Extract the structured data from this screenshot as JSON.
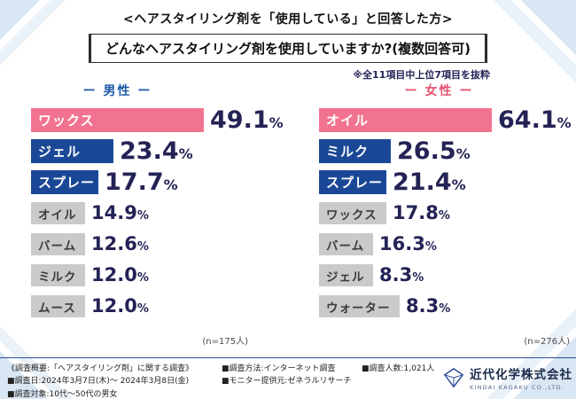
{
  "header": {
    "title": "<ヘアスタイリング剤を「使用している」と回答した方>",
    "question": "どんなヘアスタイリング剤を使用していますか?(複数回答可)",
    "note": "※全11項目中上位7項目を抜粋"
  },
  "colors": {
    "pink": "#f2738f",
    "blue": "#1b4896",
    "gray": "#c9cacb",
    "male_label": "#1c59a8",
    "female_label": "#e8506f",
    "percent_text": "#232356"
  },
  "chart_data": {
    "type": "bar",
    "orientation": "horizontal",
    "title": "どんなヘアスタイリング剤を使用していますか?(複数回答可)",
    "unit": "%",
    "value_labels": true,
    "groups": [
      {
        "name_label": "ー 男性 ー",
        "n_label": "(n=175人)",
        "items": [
          {
            "label": "ワックス",
            "value": 49.1,
            "color": "pink"
          },
          {
            "label": "ジェル",
            "value": 23.4,
            "color": "blue"
          },
          {
            "label": "スプレー",
            "value": 17.7,
            "color": "blue"
          },
          {
            "label": "オイル",
            "value": 14.9,
            "color": "gray"
          },
          {
            "label": "バーム",
            "value": 12.6,
            "color": "gray"
          },
          {
            "label": "ミルク",
            "value": 12.0,
            "color": "gray"
          },
          {
            "label": "ムース",
            "value": 12.0,
            "color": "gray"
          }
        ]
      },
      {
        "name_label": "ー 女性 ー",
        "n_label": "(n=276人)",
        "items": [
          {
            "label": "オイル",
            "value": 64.1,
            "color": "pink"
          },
          {
            "label": "ミルク",
            "value": 26.5,
            "color": "blue"
          },
          {
            "label": "スプレー",
            "value": 21.4,
            "color": "blue"
          },
          {
            "label": "ワックス",
            "value": 17.8,
            "color": "gray"
          },
          {
            "label": "バーム",
            "value": 16.3,
            "color": "gray"
          },
          {
            "label": "ジェル",
            "value": 8.3,
            "color": "gray"
          },
          {
            "label": "ウォーター",
            "value": 8.3,
            "color": "gray"
          }
        ]
      }
    ]
  },
  "footer": {
    "columns": [
      [
        "《調査概要:「ヘアスタイリング剤」に関する調査》",
        "■調査日:2024年3月7日(木)〜 2024年3月8日(金)",
        "■調査対象:10代〜50代の男女"
      ],
      [
        "■調査方法:インターネット調査",
        "■モニター提供元:ゼネラルリサーチ"
      ],
      [
        "■調査人数:1,021人"
      ]
    ],
    "company": "近代化学株式会社",
    "company_en": "KINDAI KAGAKU CO.,LTD."
  }
}
